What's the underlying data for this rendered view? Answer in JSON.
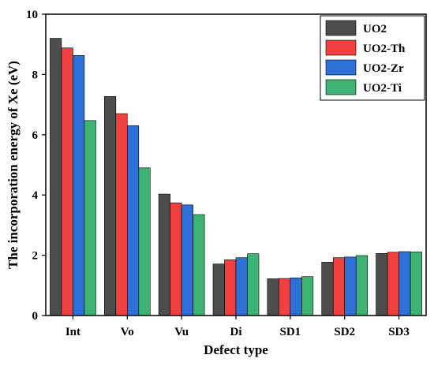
{
  "chart_data": {
    "type": "bar",
    "categories": [
      "Int",
      "Vo",
      "Vu",
      "Di",
      "SD1",
      "SD2",
      "SD3"
    ],
    "series": [
      {
        "name": "UO2",
        "color": "#4d4d4d",
        "values": [
          9.2,
          7.27,
          4.03,
          1.71,
          1.22,
          1.77,
          2.06
        ]
      },
      {
        "name": "UO2-Th",
        "color": "#f04040",
        "values": [
          8.88,
          6.7,
          3.74,
          1.85,
          1.23,
          1.92,
          2.1
        ]
      },
      {
        "name": "UO2-Zr",
        "color": "#2e6fd8",
        "values": [
          8.63,
          6.3,
          3.67,
          1.92,
          1.25,
          1.94,
          2.12
        ]
      },
      {
        "name": "UO2-Ti",
        "color": "#3cb371",
        "values": [
          6.47,
          4.9,
          3.35,
          2.05,
          1.29,
          1.99,
          2.11
        ]
      }
    ],
    "xlabel": "Defect type",
    "ylabel": "The incorporation energy of Xe (eV)",
    "ylim": [
      0,
      10
    ],
    "yticks": [
      "0",
      "2",
      "4",
      "6",
      "8",
      "10"
    ],
    "grid": false,
    "legend_position": "top-right"
  }
}
